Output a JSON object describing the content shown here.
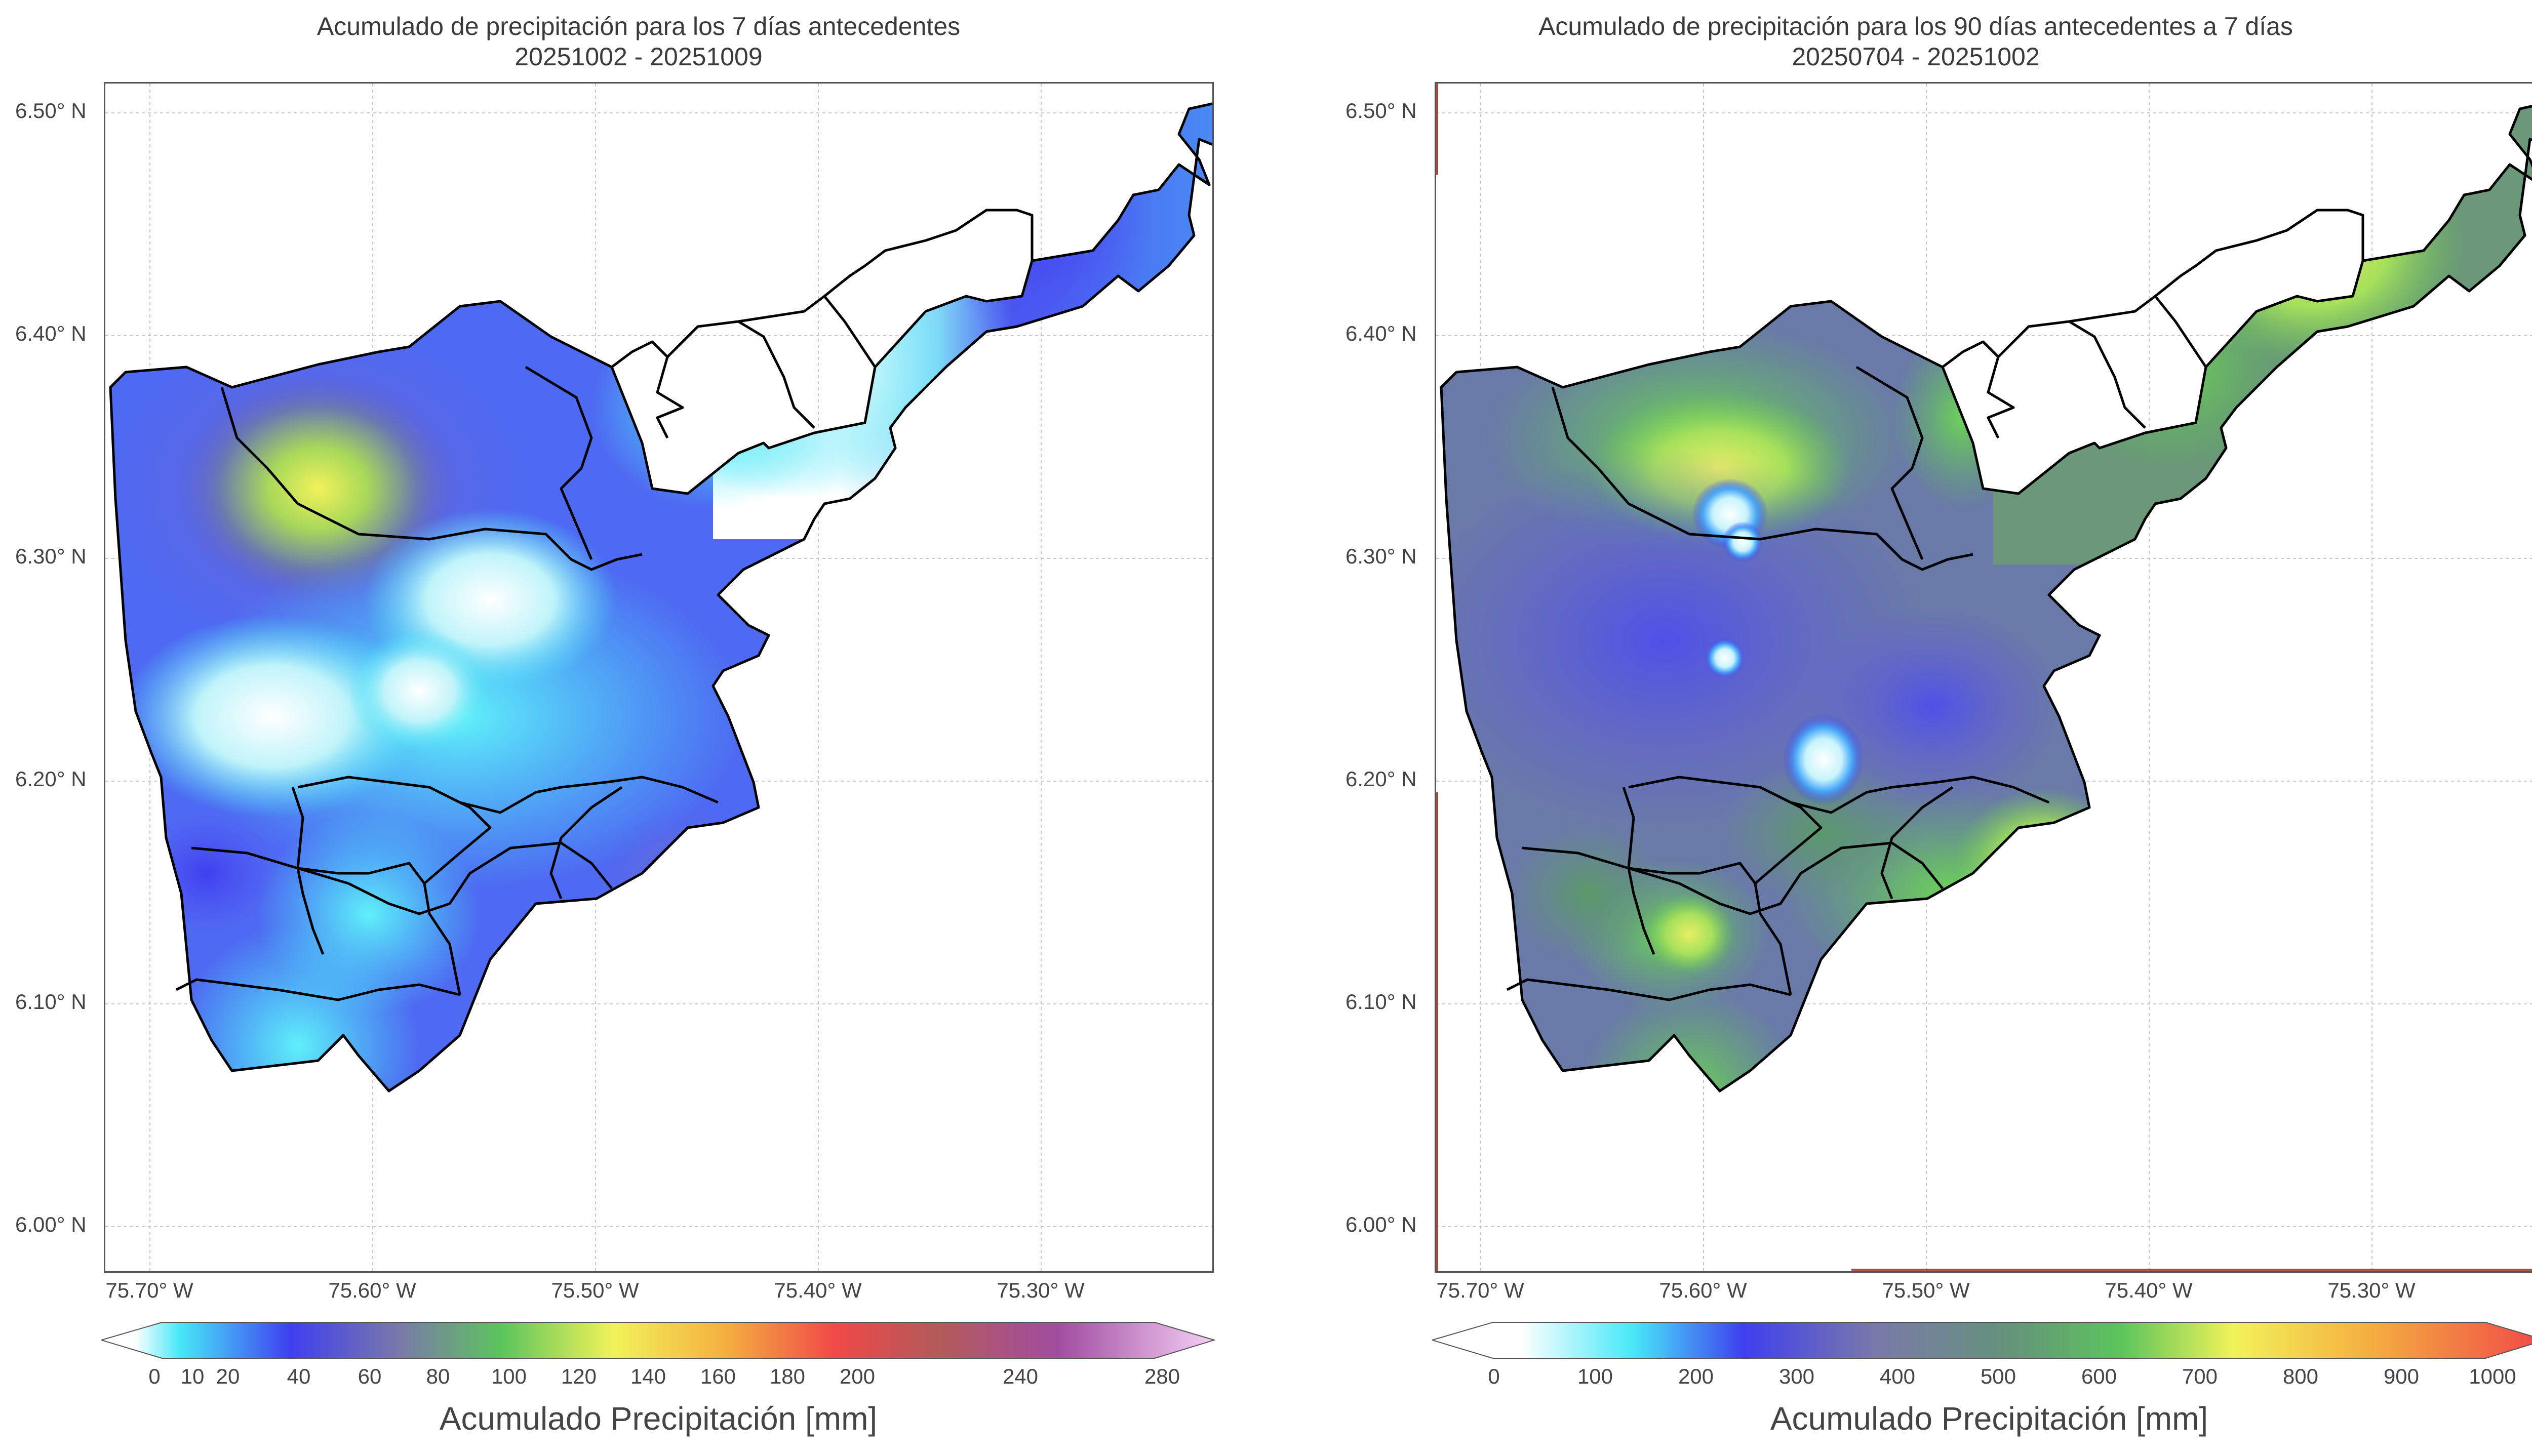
{
  "left": {
    "title_line1": "Acumulado de precipitación para los 7 días antecedentes",
    "title_line2": "20251002 - 20251009",
    "colorbar_ticks": [
      "0",
      "10",
      "20",
      "40",
      "60",
      "80",
      "100",
      "120",
      "140",
      "160",
      "180",
      "200",
      "240",
      "280"
    ],
    "colorbar_title": "Acumulado Precipitación [mm]",
    "colorbar_colors": [
      "#ffffff",
      "#48e8f8",
      "#3f3ff0",
      "#7a7aa8",
      "#5cc55c",
      "#f2f25a",
      "#f4b040",
      "#f04848",
      "#b45a5a",
      "#a04da0",
      "#f4d0f4"
    ]
  },
  "right": {
    "title_line1": "Acumulado de precipitación para los 90 días antecedentes a 7 días",
    "title_line2": "20250704 - 20251002",
    "colorbar_ticks": [
      "0",
      "100",
      "200",
      "300",
      "400",
      "500",
      "600",
      "700",
      "800",
      "900",
      "1000"
    ],
    "colorbar_title": "Acumulado Precipitación [mm]",
    "colorbar_colors": [
      "#ffffff",
      "#48e8f8",
      "#3f3ff0",
      "#7a7aa8",
      "#5cc55c",
      "#f2f25a",
      "#f4b040",
      "#f04848"
    ]
  },
  "axes": {
    "lat_labels": [
      "6.50° N",
      "6.40° N",
      "6.30° N",
      "6.20° N",
      "6.10° N",
      "6.00° N"
    ],
    "lon_labels": [
      "75.70° W",
      "75.60° W",
      "75.50° W",
      "75.40° W",
      "75.30° W"
    ]
  },
  "colors": {
    "grid": "#c8c8c8",
    "boundary": "#000000",
    "frame": "#555555"
  }
}
